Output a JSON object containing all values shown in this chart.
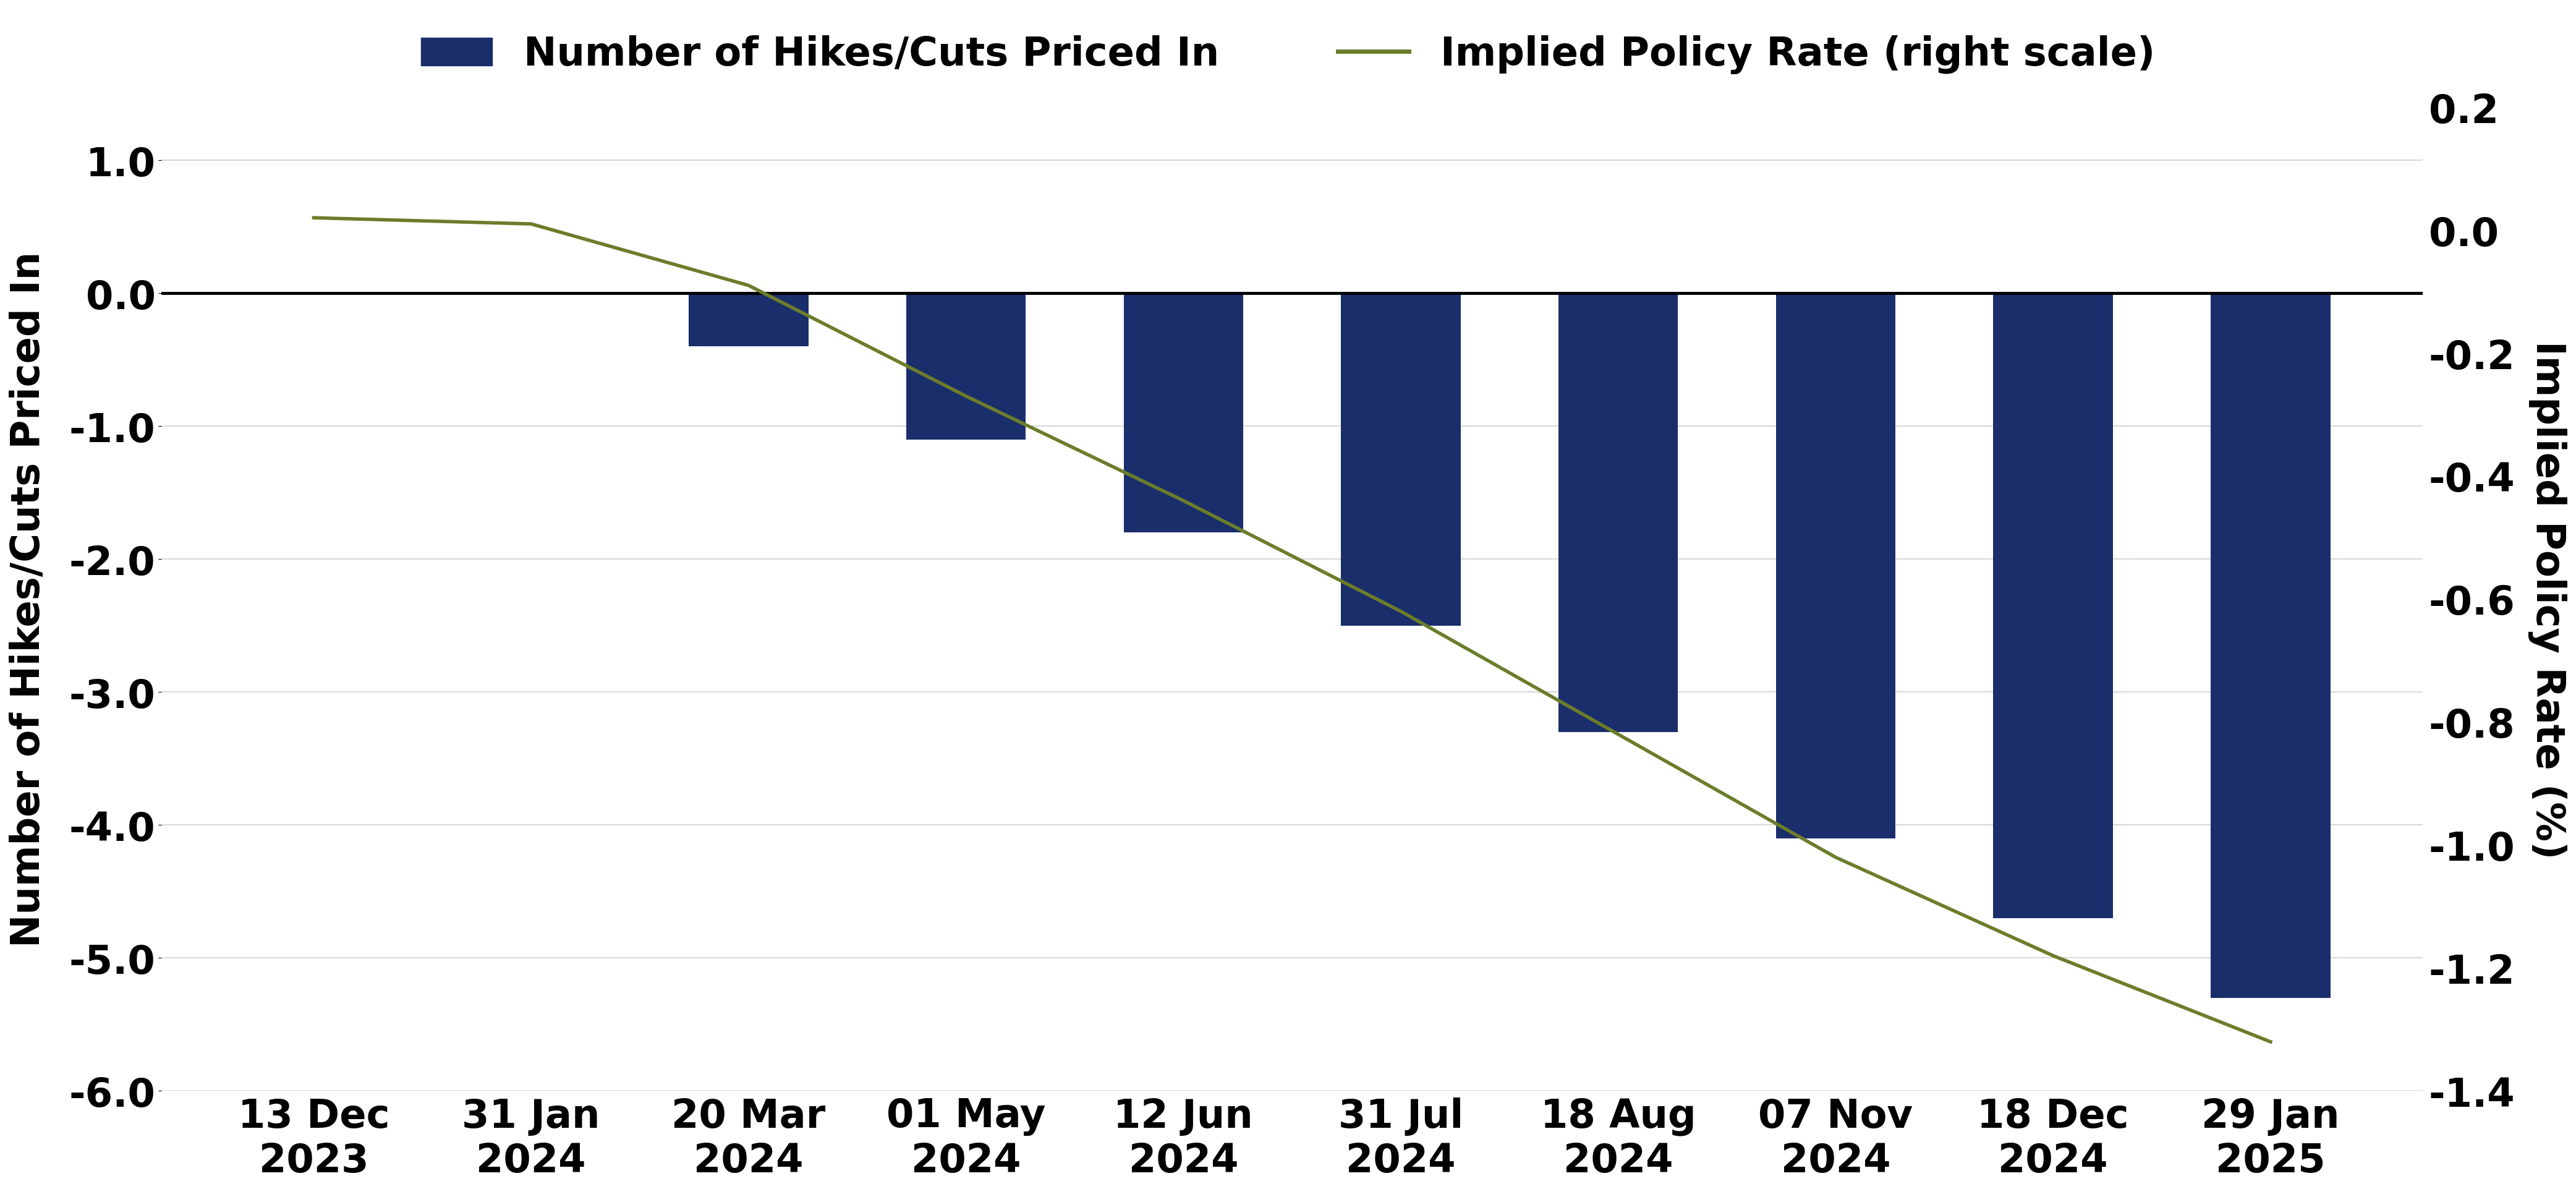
{
  "categories": [
    "13 Dec\n2023",
    "31 Jan\n2024",
    "20 Mar\n2024",
    "01 May\n2024",
    "12 Jun\n2024",
    "31 Jul\n2024",
    "18 Aug\n2024",
    "07 Nov\n2024",
    "18 Dec\n2024",
    "29 Jan\n2025"
  ],
  "bar_values": [
    0.0,
    0.0,
    -0.4,
    -1.1,
    -1.8,
    -2.5,
    -3.3,
    -4.1,
    -4.7,
    -5.3
  ],
  "line_values": [
    0.02,
    0.01,
    -0.09,
    -0.27,
    -0.44,
    -0.62,
    -0.82,
    -1.02,
    -1.18,
    -1.32
  ],
  "bar_color": "#1a2e6c",
  "line_color": "#6b7d2a",
  "left_ylim": [
    -6.0,
    1.4
  ],
  "right_ylim": [
    -1.4,
    0.2
  ],
  "left_yticks": [
    1.0,
    0.0,
    -1.0,
    -2.0,
    -3.0,
    -4.0,
    -5.0,
    -6.0
  ],
  "left_yticklabels": [
    "1.0",
    "0.0",
    "-1.0",
    "-2.0",
    "-3.0",
    "-4.0",
    "-5.0",
    "-6.0"
  ],
  "right_yticks": [
    0.2,
    0.0,
    -0.2,
    -0.4,
    -0.6,
    -0.8,
    -1.0,
    -1.2,
    -1.4
  ],
  "right_yticklabels": [
    "0.2",
    "0.0",
    "-0.2",
    "-0.4",
    "-0.6",
    "-0.8",
    "-1.0",
    "-1.2",
    "-1.4"
  ],
  "left_ylabel": "Number of Hikes/Cuts Priced In",
  "right_ylabel": "Implied Policy Rate (%)",
  "legend_bar_label": "Number of Hikes/Cuts Priced In",
  "legend_line_label": "Implied Policy Rate (right scale)",
  "background_color": "#ffffff",
  "grid_color": "#d0d0d0",
  "bar_width": 0.55,
  "zero_line_color": "#000000",
  "tick_fontsize": 46,
  "ylabel_fontsize": 46,
  "legend_fontsize": 46
}
